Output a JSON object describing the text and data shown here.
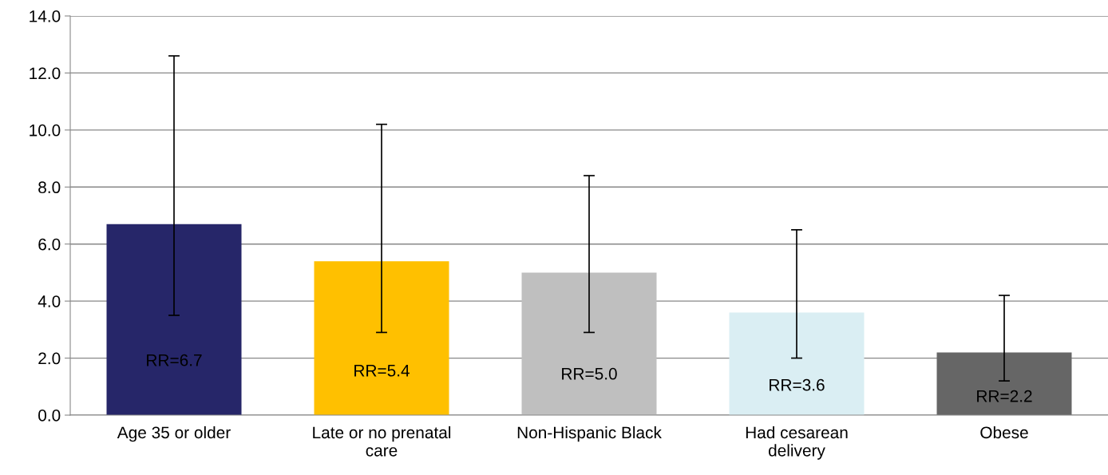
{
  "chart_data": {
    "type": "bar",
    "categories": [
      "Age 35 or older",
      "Late or no prenatal\ncare",
      "Non-Hispanic Black",
      "Had cesarean\ndelivery",
      "Obese"
    ],
    "values": [
      6.7,
      5.4,
      5.0,
      3.6,
      2.2
    ],
    "colors": [
      "#262669",
      "#ffc000",
      "#bfbfbf",
      "#daeef3",
      "#666666"
    ],
    "errors": [
      [
        3.5,
        12.6
      ],
      [
        2.9,
        10.2
      ],
      [
        2.9,
        8.4
      ],
      [
        2.0,
        6.5
      ],
      [
        1.2,
        4.2
      ]
    ],
    "value_labels": [
      "RR=6.7",
      "RR=5.4",
      "RR=5.0",
      "RR=3.6",
      "RR=2.2"
    ],
    "ylim": [
      0,
      14
    ],
    "yticks": [
      {
        "value": 0,
        "label": "0.0"
      },
      {
        "value": 2,
        "label": "2.0"
      },
      {
        "value": 4,
        "label": "4.0"
      },
      {
        "value": 6,
        "label": "6.0"
      },
      {
        "value": 8,
        "label": "8.0"
      },
      {
        "value": 10,
        "label": "10.0"
      },
      {
        "value": 12,
        "label": "12.0"
      },
      {
        "value": 14,
        "label": "14.0"
      }
    ],
    "grid": "y"
  }
}
